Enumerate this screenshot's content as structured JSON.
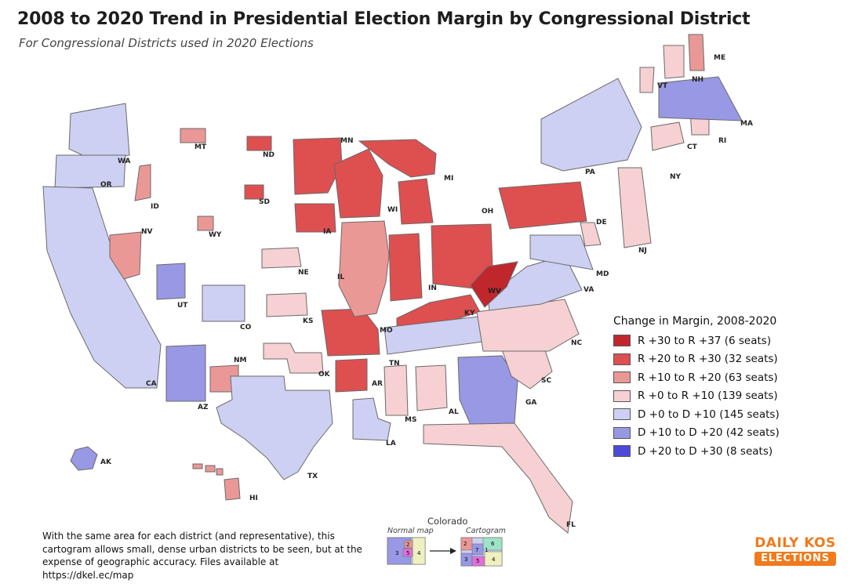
{
  "title": "2008 to 2020 Trend in Presidential Election Margin by Congressional District",
  "subtitle": "For Congressional Districts used in 2020 Elections",
  "legend": {
    "title": "Change in Margin, 2008-2020",
    "items": [
      {
        "label": "R +30 to R +37 (6 seats)",
        "color": "#c0272d"
      },
      {
        "label": "R +20 to R +30 (32 seats)",
        "color": "#de4f50"
      },
      {
        "label": "R +10 to R +20 (63 seats)",
        "color": "#ea9896"
      },
      {
        "label": "R +0 to R +10 (139 seats)",
        "color": "#f6d0d2"
      },
      {
        "label": "D +0 to D +10 (145 seats)",
        "color": "#cdd0f2"
      },
      {
        "label": "D +10 to D +20 (42 seats)",
        "color": "#9898e4"
      },
      {
        "label": "D +20 to D +30 (8 seats)",
        "color": "#4b4bd8"
      }
    ]
  },
  "states": [
    {
      "abbr": "WA",
      "color": "#cdd0f2"
    },
    {
      "abbr": "OR",
      "color": "#cdd0f2"
    },
    {
      "abbr": "CA",
      "color": "#cdd0f2"
    },
    {
      "abbr": "NV",
      "color": "#ea9896"
    },
    {
      "abbr": "ID",
      "color": "#ea9896"
    },
    {
      "abbr": "MT",
      "color": "#ea9896"
    },
    {
      "abbr": "WY",
      "color": "#ea9896"
    },
    {
      "abbr": "UT",
      "color": "#9898e4"
    },
    {
      "abbr": "AZ",
      "color": "#9898e4"
    },
    {
      "abbr": "CO",
      "color": "#cdd0f2"
    },
    {
      "abbr": "NM",
      "color": "#ea9896"
    },
    {
      "abbr": "ND",
      "color": "#de4f50"
    },
    {
      "abbr": "SD",
      "color": "#de4f50"
    },
    {
      "abbr": "NE",
      "color": "#f6d0d2"
    },
    {
      "abbr": "KS",
      "color": "#f6d0d2"
    },
    {
      "abbr": "OK",
      "color": "#f6d0d2"
    },
    {
      "abbr": "TX",
      "color": "#cdd0f2"
    },
    {
      "abbr": "MN",
      "color": "#de4f50"
    },
    {
      "abbr": "IA",
      "color": "#de4f50"
    },
    {
      "abbr": "MO",
      "color": "#de4f50"
    },
    {
      "abbr": "AR",
      "color": "#de4f50"
    },
    {
      "abbr": "LA",
      "color": "#cdd0f2"
    },
    {
      "abbr": "WI",
      "color": "#de4f50"
    },
    {
      "abbr": "IL",
      "color": "#ea9896"
    },
    {
      "abbr": "MI",
      "color": "#de4f50"
    },
    {
      "abbr": "IN",
      "color": "#de4f50"
    },
    {
      "abbr": "OH",
      "color": "#de4f50"
    },
    {
      "abbr": "KY",
      "color": "#de4f50"
    },
    {
      "abbr": "TN",
      "color": "#cdd0f2"
    },
    {
      "abbr": "MS",
      "color": "#f6d0d2"
    },
    {
      "abbr": "AL",
      "color": "#f6d0d2"
    },
    {
      "abbr": "GA",
      "color": "#9898e4"
    },
    {
      "abbr": "FL",
      "color": "#f6d0d2"
    },
    {
      "abbr": "SC",
      "color": "#f6d0d2"
    },
    {
      "abbr": "NC",
      "color": "#f6d0d2"
    },
    {
      "abbr": "VA",
      "color": "#cdd0f2"
    },
    {
      "abbr": "WV",
      "color": "#c0272d"
    },
    {
      "abbr": "PA",
      "color": "#de4f50"
    },
    {
      "abbr": "NY",
      "color": "#cdd0f2"
    },
    {
      "abbr": "NJ",
      "color": "#f6d0d2"
    },
    {
      "abbr": "DE",
      "color": "#f6d0d2"
    },
    {
      "abbr": "MD",
      "color": "#cdd0f2"
    },
    {
      "abbr": "CT",
      "color": "#f6d0d2"
    },
    {
      "abbr": "RI",
      "color": "#f6d0d2"
    },
    {
      "abbr": "MA",
      "color": "#9898e4"
    },
    {
      "abbr": "VT",
      "color": "#f6d0d2"
    },
    {
      "abbr": "NH",
      "color": "#f6d0d2"
    },
    {
      "abbr": "ME",
      "color": "#ea9896"
    },
    {
      "abbr": "AK",
      "color": "#9898e4"
    },
    {
      "abbr": "HI",
      "color": "#ea9896"
    }
  ],
  "note": "With the same area for each district (and representative), this cartogram allows small, dense urban districts to be seen, but at the expense of geographic accuracy. Files available at https://dkel.ec/map",
  "inset": {
    "title": "Colorado",
    "normal_label": "Normal map",
    "cartogram_label": "Cartogram",
    "normal_numbers": [
      "2",
      "3",
      "5",
      "4"
    ],
    "cartogram_numbers": [
      "2",
      "6",
      "7",
      "1",
      "3",
      "5",
      "4"
    ]
  },
  "logo": {
    "top": "DAILY KOS",
    "bottom": "ELECTIONS"
  }
}
